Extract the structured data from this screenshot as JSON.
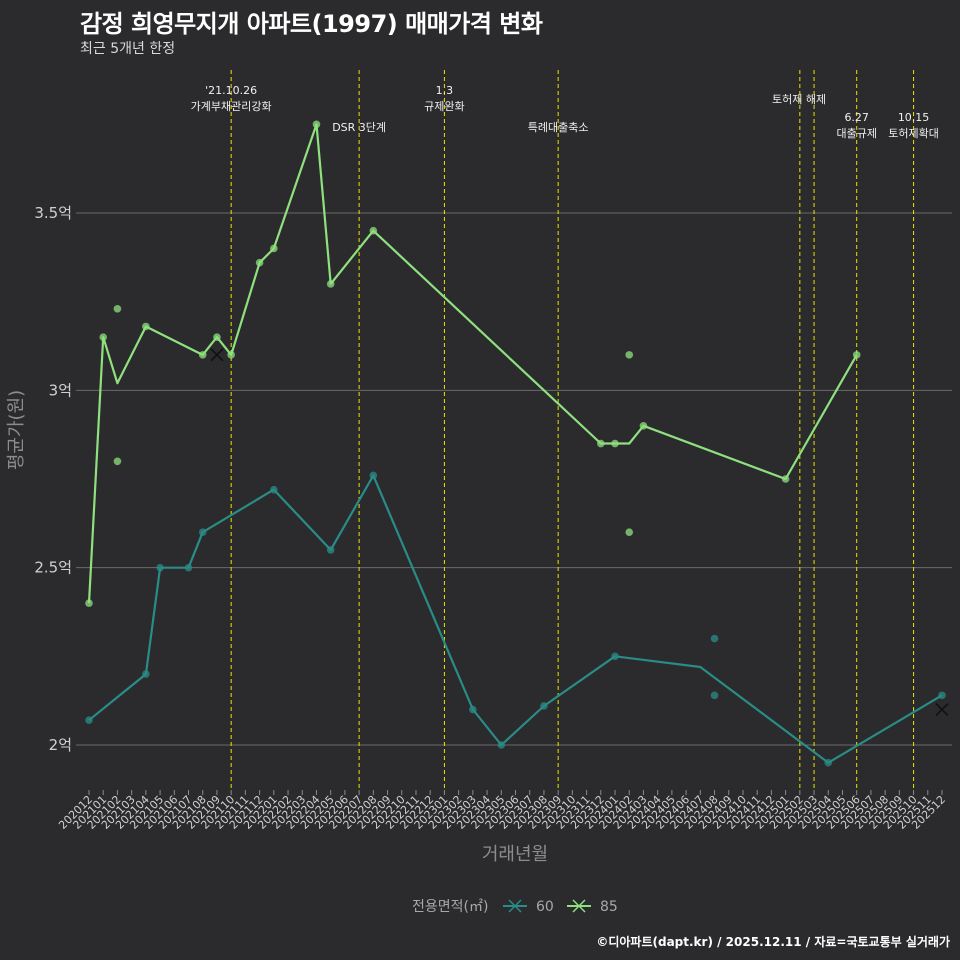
{
  "header": {
    "title": "감정 희영무지개 아파트(1997) 매매가격 변화",
    "subtitle": "최근 5개년 한정"
  },
  "caption": "©디아파트(dapt.kr) / 2025.12.11 / 자료=국토교통부 실거래가",
  "chart_data": {
    "type": "line",
    "title": "감정 희영무지개 아파트(1997) 매매가격 변화",
    "xlabel": "거래년월",
    "ylabel": "평균가(원)",
    "ylim": [
      1.85,
      3.85
    ],
    "yticks": [
      2.0,
      2.5,
      3.0,
      3.5
    ],
    "ytick_labels": [
      "2억",
      "2.5억",
      "3억",
      "3.5억"
    ],
    "categories": [
      "202012",
      "202101",
      "202102",
      "202103",
      "202104",
      "202105",
      "202106",
      "202107",
      "202108",
      "202109",
      "202110",
      "202111",
      "202112",
      "202201",
      "202202",
      "202203",
      "202204",
      "202205",
      "202206",
      "202207",
      "202208",
      "202209",
      "202210",
      "202211",
      "202212",
      "202301",
      "202302",
      "202303",
      "202304",
      "202305",
      "202306",
      "202307",
      "202308",
      "202309",
      "202310",
      "202311",
      "202312",
      "202401",
      "202402",
      "202403",
      "202404",
      "202405",
      "202406",
      "202407",
      "202408",
      "202409",
      "202410",
      "202411",
      "202412",
      "202501",
      "202502",
      "202503",
      "202504",
      "202505",
      "202506",
      "202507",
      "202508",
      "202509",
      "202510",
      "202511",
      "202512"
    ],
    "series": [
      {
        "name": "60",
        "color": "#2a8c87",
        "line": [
          [
            "202012",
            2.07
          ],
          [
            "202104",
            2.2
          ],
          [
            "202105",
            2.5
          ],
          [
            "202107",
            2.5
          ],
          [
            "202108",
            2.6
          ],
          [
            "202201",
            2.72
          ],
          [
            "202205",
            2.55
          ],
          [
            "202208",
            2.76
          ],
          [
            "202303",
            2.1
          ],
          [
            "202305",
            2.0
          ],
          [
            "202308",
            2.11
          ],
          [
            "202401",
            2.25
          ],
          [
            "202407",
            2.22
          ],
          [
            "202504",
            1.95
          ],
          [
            "202512",
            2.14
          ]
        ],
        "points": [
          [
            "202012",
            2.07
          ],
          [
            "202104",
            2.2
          ],
          [
            "202105",
            2.5
          ],
          [
            "202107",
            2.5
          ],
          [
            "202108",
            2.6
          ],
          [
            "202201",
            2.72
          ],
          [
            "202205",
            2.55
          ],
          [
            "202208",
            2.76
          ],
          [
            "202303",
            2.1
          ],
          [
            "202305",
            2.0
          ],
          [
            "202308",
            2.11
          ],
          [
            "202401",
            2.25
          ],
          [
            "202408",
            2.3
          ],
          [
            "202408",
            2.14
          ],
          [
            "202504",
            1.95
          ],
          [
            "202512",
            2.14
          ]
        ],
        "cancelled": [
          [
            "202512",
            2.1
          ]
        ]
      },
      {
        "name": "85",
        "color": "#8fe07f",
        "line": [
          [
            "202012",
            2.4
          ],
          [
            "202101",
            3.15
          ],
          [
            "202102",
            3.02
          ],
          [
            "202104",
            3.18
          ],
          [
            "202108",
            3.1
          ],
          [
            "202109",
            3.15
          ],
          [
            "202110",
            3.1
          ],
          [
            "202112",
            3.36
          ],
          [
            "202201",
            3.4
          ],
          [
            "202204",
            3.75
          ],
          [
            "202205",
            3.3
          ],
          [
            "202208",
            3.45
          ],
          [
            "202312",
            2.85
          ],
          [
            "202401",
            2.85
          ],
          [
            "202402",
            2.85
          ],
          [
            "202403",
            2.9
          ],
          [
            "202501",
            2.75
          ],
          [
            "202506",
            3.1
          ]
        ],
        "points": [
          [
            "202012",
            2.4
          ],
          [
            "202101",
            3.15
          ],
          [
            "202102",
            3.23
          ],
          [
            "202102",
            2.8
          ],
          [
            "202104",
            3.18
          ],
          [
            "202108",
            3.1
          ],
          [
            "202109",
            3.15
          ],
          [
            "202110",
            3.1
          ],
          [
            "202112",
            3.36
          ],
          [
            "202201",
            3.4
          ],
          [
            "202204",
            3.75
          ],
          [
            "202205",
            3.3
          ],
          [
            "202208",
            3.45
          ],
          [
            "202312",
            2.85
          ],
          [
            "202401",
            2.85
          ],
          [
            "202402",
            3.1
          ],
          [
            "202402",
            2.6
          ],
          [
            "202403",
            2.9
          ],
          [
            "202501",
            2.75
          ],
          [
            "202506",
            3.1
          ]
        ],
        "cancelled": [
          [
            "202109",
            3.1
          ]
        ]
      }
    ],
    "events": [
      {
        "month": "202110",
        "line1": "'21.10.26",
        "line2": "가계부채관리강화",
        "row": 0
      },
      {
        "month": "202207",
        "line1": "",
        "line2": "DSR 3단계",
        "row": 1
      },
      {
        "month": "202301",
        "line1": "1.3",
        "line2": "규제완화",
        "row": 0
      },
      {
        "month": "202309",
        "line1": "",
        "line2": "특례대출축소",
        "row": 1
      },
      {
        "month": "202503",
        "line1": "",
        "line2": "토허제 해제",
        "row": 0
      },
      {
        "month": "202502",
        "line1": "",
        "line2": "",
        "row": 0
      },
      {
        "month": "202506",
        "line1": "6.27",
        "line2": "대출규제",
        "row": 1
      },
      {
        "month": "202510",
        "line1": "10.15",
        "line2": "토허제확대",
        "row": 1
      }
    ],
    "event_line_color": "#e6e600",
    "legend": {
      "title": "전용면적(㎡)",
      "position": "bottom",
      "items": [
        "60",
        "85"
      ]
    }
  }
}
